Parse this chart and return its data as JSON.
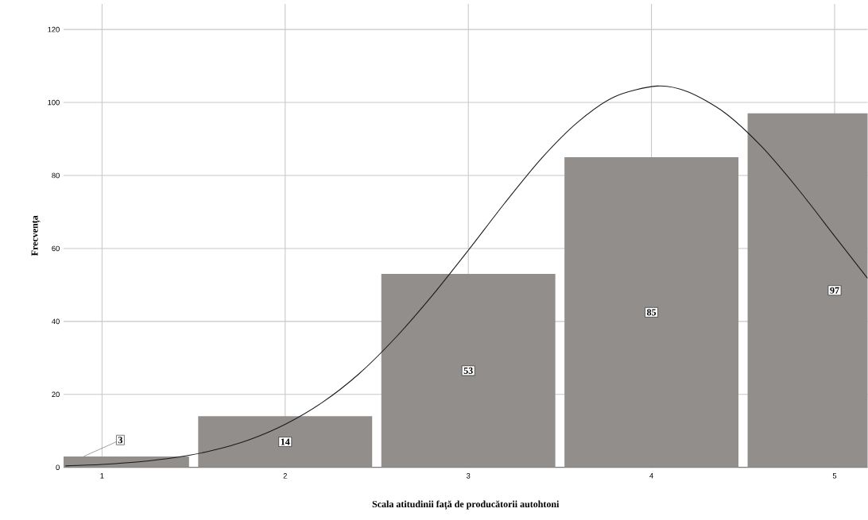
{
  "chart_data": {
    "type": "bar",
    "xlabel": "Scala atitudinii față de producătorii autohtoni",
    "ylabel": "Frecvența",
    "x": [
      1,
      2,
      3,
      4,
      5
    ],
    "xlim": [
      0.79,
      5.18
    ],
    "xticks": [
      1,
      2,
      3,
      4,
      5
    ],
    "ylim": [
      0,
      127
    ],
    "yticks": [
      0,
      20,
      40,
      60,
      80,
      100,
      120
    ],
    "grid": true,
    "series": [
      {
        "color": "#918e8c",
        "values": [
          3,
          14,
          53,
          85,
          97
        ],
        "value_labels": [
          "3",
          "14",
          "53",
          "85",
          "97"
        ]
      },
      {
        "type": "line",
        "color": "#1a1a1a",
        "x": [
          0.8,
          1.0,
          1.2,
          1.4,
          1.6,
          1.8,
          2.0,
          2.2,
          2.4,
          2.6,
          2.8,
          3.0,
          3.2,
          3.4,
          3.6,
          3.8,
          4.03,
          4.2,
          4.4,
          4.6,
          4.8,
          5.0,
          5.18
        ],
        "values": [
          0.4,
          0.8,
          1.5,
          2.7,
          4.6,
          7.5,
          11.8,
          17.7,
          25.5,
          35.4,
          46.9,
          59.5,
          72.5,
          84.7,
          94.7,
          101.6,
          104.5,
          102.9,
          97.2,
          88.0,
          76.3,
          63.4,
          51.8
        ]
      }
    ]
  }
}
